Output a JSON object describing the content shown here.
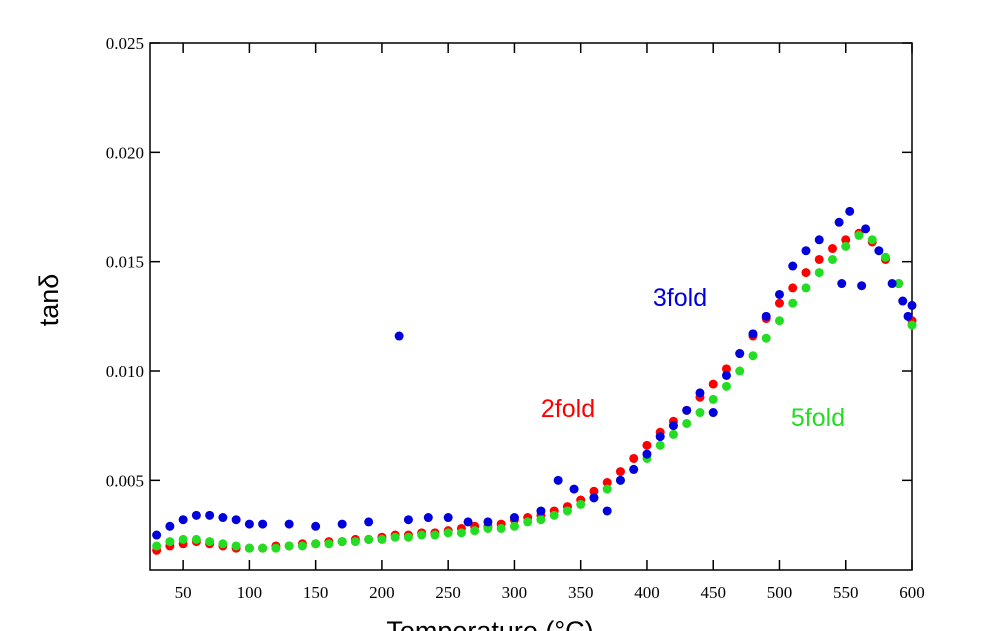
{
  "chart_data": {
    "type": "scatter",
    "xlabel": "Temperature (°C)",
    "ylabel": "tanδ",
    "xlim": [
      25,
      600
    ],
    "ylim": [
      0.0009,
      0.025
    ],
    "xticks": [
      50,
      100,
      150,
      200,
      250,
      300,
      350,
      400,
      450,
      500,
      550,
      600
    ],
    "yticks": [
      0.005,
      {
        "value": 0.01,
        "label": "0.010"
      },
      0.015,
      {
        "value": 0.02,
        "label": "0.020"
      },
      0.025
    ],
    "series": [
      {
        "name": "2fold",
        "color": "#ff0000",
        "x": [
          30,
          40,
          50,
          60,
          70,
          80,
          90,
          100,
          110,
          120,
          130,
          140,
          150,
          160,
          170,
          180,
          190,
          200,
          210,
          220,
          230,
          240,
          250,
          260,
          270,
          280,
          290,
          300,
          310,
          320,
          330,
          340,
          350,
          360,
          370,
          380,
          390,
          400,
          410,
          420,
          430,
          440,
          450,
          460,
          470,
          480,
          490,
          500,
          510,
          520,
          530,
          540,
          550,
          560,
          570,
          580,
          590,
          600
        ],
        "values": [
          0.0018,
          0.002,
          0.0021,
          0.0022,
          0.0021,
          0.002,
          0.0019,
          0.0019,
          0.0019,
          0.002,
          0.002,
          0.0021,
          0.0021,
          0.0022,
          0.0022,
          0.0023,
          0.0023,
          0.0024,
          0.0025,
          0.0025,
          0.0026,
          0.0026,
          0.0027,
          0.0028,
          0.0029,
          0.0029,
          0.003,
          0.0032,
          0.0033,
          0.0034,
          0.0036,
          0.0038,
          0.0041,
          0.0045,
          0.0049,
          0.0054,
          0.006,
          0.0066,
          0.0072,
          0.0077,
          0.0082,
          0.0088,
          0.0094,
          0.0101,
          0.0108,
          0.0116,
          0.0124,
          0.0131,
          0.0138,
          0.0145,
          0.0151,
          0.0156,
          0.016,
          0.0163,
          0.0159,
          0.0151,
          0.014,
          0.0123
        ]
      },
      {
        "name": "5fold",
        "color": "#22dd22",
        "x": [
          30,
          40,
          50,
          60,
          70,
          80,
          90,
          100,
          110,
          120,
          130,
          140,
          150,
          160,
          170,
          180,
          190,
          200,
          210,
          220,
          230,
          240,
          250,
          260,
          270,
          280,
          290,
          300,
          310,
          320,
          330,
          340,
          350,
          360,
          370,
          380,
          390,
          400,
          410,
          420,
          430,
          440,
          450,
          460,
          470,
          480,
          490,
          500,
          510,
          520,
          530,
          540,
          550,
          560,
          570,
          580,
          590,
          600
        ],
        "values": [
          0.002,
          0.0022,
          0.0023,
          0.0023,
          0.0022,
          0.0021,
          0.002,
          0.0019,
          0.0019,
          0.0019,
          0.002,
          0.002,
          0.0021,
          0.0021,
          0.0022,
          0.0022,
          0.0023,
          0.0023,
          0.0024,
          0.0024,
          0.0025,
          0.0025,
          0.0026,
          0.0026,
          0.0027,
          0.0028,
          0.0028,
          0.0029,
          0.0031,
          0.0032,
          0.0034,
          0.0036,
          0.0039,
          0.0042,
          0.0046,
          0.005,
          0.0055,
          0.006,
          0.0066,
          0.0071,
          0.0076,
          0.0081,
          0.0087,
          0.0093,
          0.01,
          0.0107,
          0.0115,
          0.0123,
          0.0131,
          0.0138,
          0.0145,
          0.0151,
          0.0157,
          0.0162,
          0.016,
          0.0152,
          0.014,
          0.0121
        ]
      },
      {
        "name": "3fold",
        "color": "#0000dd",
        "x": [
          30,
          40,
          50,
          60,
          70,
          80,
          90,
          100,
          110,
          130,
          150,
          170,
          190,
          213,
          220,
          235,
          250,
          265,
          280,
          300,
          320,
          333,
          345,
          360,
          370,
          380,
          390,
          400,
          410,
          420,
          430,
          440,
          450,
          460,
          470,
          480,
          490,
          500,
          510,
          520,
          530,
          545,
          547,
          553,
          562,
          565,
          575,
          585,
          593,
          597,
          600
        ],
        "values": [
          0.0025,
          0.0029,
          0.0032,
          0.0034,
          0.0034,
          0.0033,
          0.0032,
          0.003,
          0.003,
          0.003,
          0.0029,
          0.003,
          0.0031,
          0.0116,
          0.0032,
          0.0033,
          0.0033,
          0.0031,
          0.0031,
          0.0033,
          0.0036,
          0.005,
          0.0046,
          0.0042,
          0.0036,
          0.005,
          0.0055,
          0.0062,
          0.007,
          0.0075,
          0.0082,
          0.009,
          0.0081,
          0.0098,
          0.0108,
          0.0117,
          0.0125,
          0.0135,
          0.0148,
          0.0155,
          0.016,
          0.0168,
          0.014,
          0.0173,
          0.0139,
          0.0165,
          0.0155,
          0.014,
          0.0132,
          0.0125,
          0.013
        ]
      }
    ]
  }
}
